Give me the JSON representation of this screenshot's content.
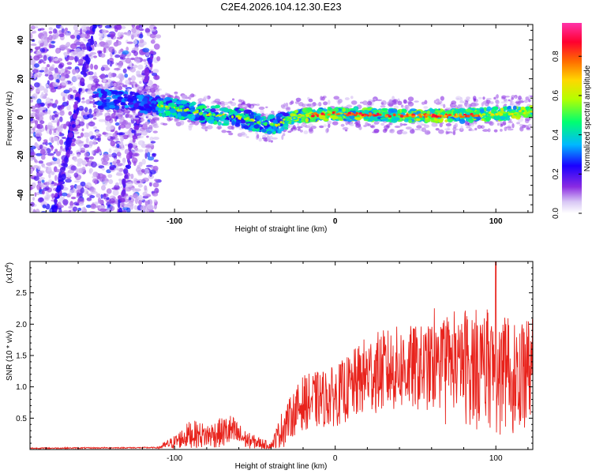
{
  "title": "C2E4.2026.104.12.30.E23",
  "chart_data": [
    {
      "type": "heatmap",
      "xlabel": "Height of straight line (km)",
      "ylabel": "Frequency (Hz)",
      "xlim": [
        -190,
        123
      ],
      "ylim": [
        -49,
        48
      ],
      "xticks": [
        -100,
        0,
        100
      ],
      "yticks": [
        -40,
        -20,
        0,
        20,
        40
      ],
      "colorbar": {
        "label": "Normalized spectral amplitude",
        "range": [
          0,
          0.97
        ],
        "ticks": [
          0.0,
          0.2,
          0.4,
          0.6,
          0.8
        ],
        "tick_labels": [
          "0.0",
          "0.2",
          "0.4",
          "0.6",
          "0.8"
        ],
        "colormap": [
          "#ffffff",
          "#c9b6f2",
          "#8a2be2",
          "#1a00ff",
          "#00b8ff",
          "#00ff70",
          "#b4ff00",
          "#ffd700",
          "#ff6a00",
          "#ff0030",
          "#ff33aa"
        ]
      },
      "ridge": {
        "description_points": [
          [
            -150,
            10
          ],
          [
            -125,
            8
          ],
          [
            -110,
            6
          ],
          [
            -95,
            4
          ],
          [
            -80,
            2
          ],
          [
            -60,
            0
          ],
          [
            -45,
            -3
          ],
          [
            -38,
            -4
          ],
          [
            -30,
            -1
          ],
          [
            -20,
            1
          ],
          [
            0,
            2
          ],
          [
            40,
            1
          ],
          [
            80,
            1
          ],
          [
            100,
            2
          ],
          [
            123,
            3
          ]
        ]
      }
    },
    {
      "type": "line",
      "xlabel": "Height of straight line (km)",
      "ylabel": "SNR (10 * v/v)",
      "y_multiplier": "(x10",
      "y_multiplier_exp": "4",
      "y_multiplier_close": ")",
      "xlim": [
        -190,
        123
      ],
      "ylim": [
        0,
        3.0
      ],
      "xticks": [
        -100,
        0,
        100
      ],
      "yticks": [
        0.5,
        1.0,
        1.5,
        2.0,
        2.5
      ],
      "tick_labels": [
        "0.5",
        "1.0",
        "1.5",
        "2.0",
        "2.5"
      ],
      "color": "#e8221b",
      "envelope": [
        {
          "x": -190,
          "y": 0.02
        },
        {
          "x": -110,
          "y": 0.03
        },
        {
          "x": -100,
          "y": 0.12
        },
        {
          "x": -90,
          "y": 0.25
        },
        {
          "x": -80,
          "y": 0.22
        },
        {
          "x": -65,
          "y": 0.3
        },
        {
          "x": -55,
          "y": 0.15
        },
        {
          "x": -40,
          "y": 0.06
        },
        {
          "x": -30,
          "y": 0.45
        },
        {
          "x": -20,
          "y": 0.75
        },
        {
          "x": -10,
          "y": 0.8
        },
        {
          "x": 0,
          "y": 0.85
        },
        {
          "x": 10,
          "y": 1.0
        },
        {
          "x": 20,
          "y": 1.2
        },
        {
          "x": 40,
          "y": 1.3
        },
        {
          "x": 60,
          "y": 1.3
        },
        {
          "x": 80,
          "y": 1.35
        },
        {
          "x": 100,
          "y": 1.25
        },
        {
          "x": 110,
          "y": 1.2
        },
        {
          "x": 123,
          "y": 1.3
        }
      ],
      "peak": {
        "x": 100,
        "y": 3.0
      }
    }
  ]
}
